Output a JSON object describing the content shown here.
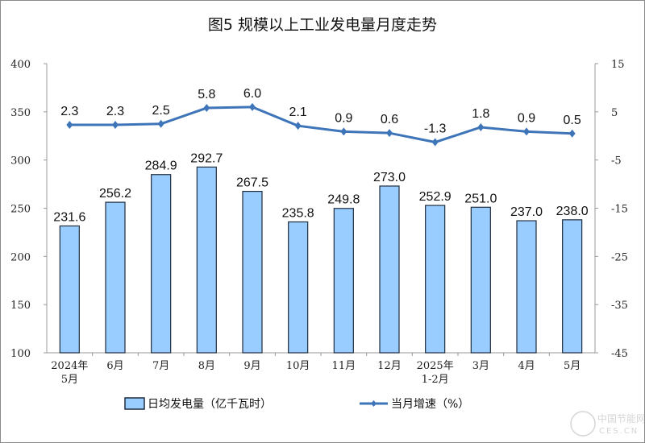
{
  "chart_data": {
    "type": "bar+line",
    "title": "图5  规模以上工业发电量月度走势",
    "categories": [
      [
        "2024年",
        "5月"
      ],
      [
        "6月"
      ],
      [
        "7月"
      ],
      [
        "8月"
      ],
      [
        "9月"
      ],
      [
        "10月"
      ],
      [
        "11月"
      ],
      [
        "12月"
      ],
      [
        "2025年",
        "1-2月"
      ],
      [
        "3月"
      ],
      [
        "4月"
      ],
      [
        "5月"
      ]
    ],
    "series": [
      {
        "name": "日均发电量（亿千瓦时）",
        "type": "bar",
        "axis": "left",
        "color": "#99CCFF",
        "border": "#1F2D3D",
        "values": [
          231.6,
          256.2,
          284.9,
          292.7,
          267.5,
          235.8,
          249.8,
          273.0,
          252.9,
          251.0,
          237.0,
          238.0
        ],
        "labels": [
          "231.6",
          "256.2",
          "284.9",
          "292.7",
          "267.5",
          "235.8",
          "249.8",
          "273.0",
          "252.9",
          "251.0",
          "237.0",
          "238.0"
        ]
      },
      {
        "name": "当月增速（%）",
        "type": "line",
        "axis": "right",
        "color": "#3E75B9",
        "values": [
          2.3,
          2.3,
          2.5,
          5.8,
          6.0,
          2.1,
          0.9,
          0.6,
          -1.3,
          1.8,
          0.9,
          0.5
        ],
        "labels": [
          "2.3",
          "2.3",
          "2.5",
          "5.8",
          "6.0",
          "2.1",
          "0.9",
          "0.6",
          "-1.3",
          "1.8",
          "0.9",
          "0.5"
        ]
      }
    ],
    "left_axis": {
      "ylim": [
        100,
        400
      ],
      "ticks": [
        "100",
        "150",
        "200",
        "250",
        "300",
        "350",
        "400"
      ]
    },
    "right_axis": {
      "ylim": [
        -45,
        15
      ],
      "ticks": [
        "-45",
        "-35",
        "-25",
        "-15",
        "-5",
        "5",
        "15"
      ]
    },
    "grid": false,
    "legend_placement": "bottom"
  },
  "watermark": {
    "text_cn": "中国节能网",
    "text_en": "CES.CN"
  }
}
